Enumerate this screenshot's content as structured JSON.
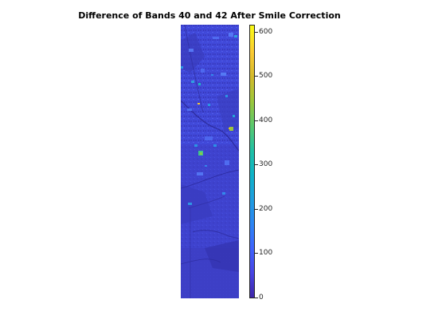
{
  "figure": {
    "title": "Difference of Bands 40 and 42 After Smile Correction"
  },
  "colorbar": {
    "colormap": "parula",
    "range": [
      0,
      620
    ],
    "ticks": [
      {
        "value": 0,
        "label": "0"
      },
      {
        "value": 100,
        "label": "100"
      },
      {
        "value": 200,
        "label": "200"
      },
      {
        "value": 300,
        "label": "300"
      },
      {
        "value": 400,
        "label": "400"
      },
      {
        "value": 500,
        "label": "500"
      },
      {
        "value": 600,
        "label": "600"
      }
    ]
  }
}
